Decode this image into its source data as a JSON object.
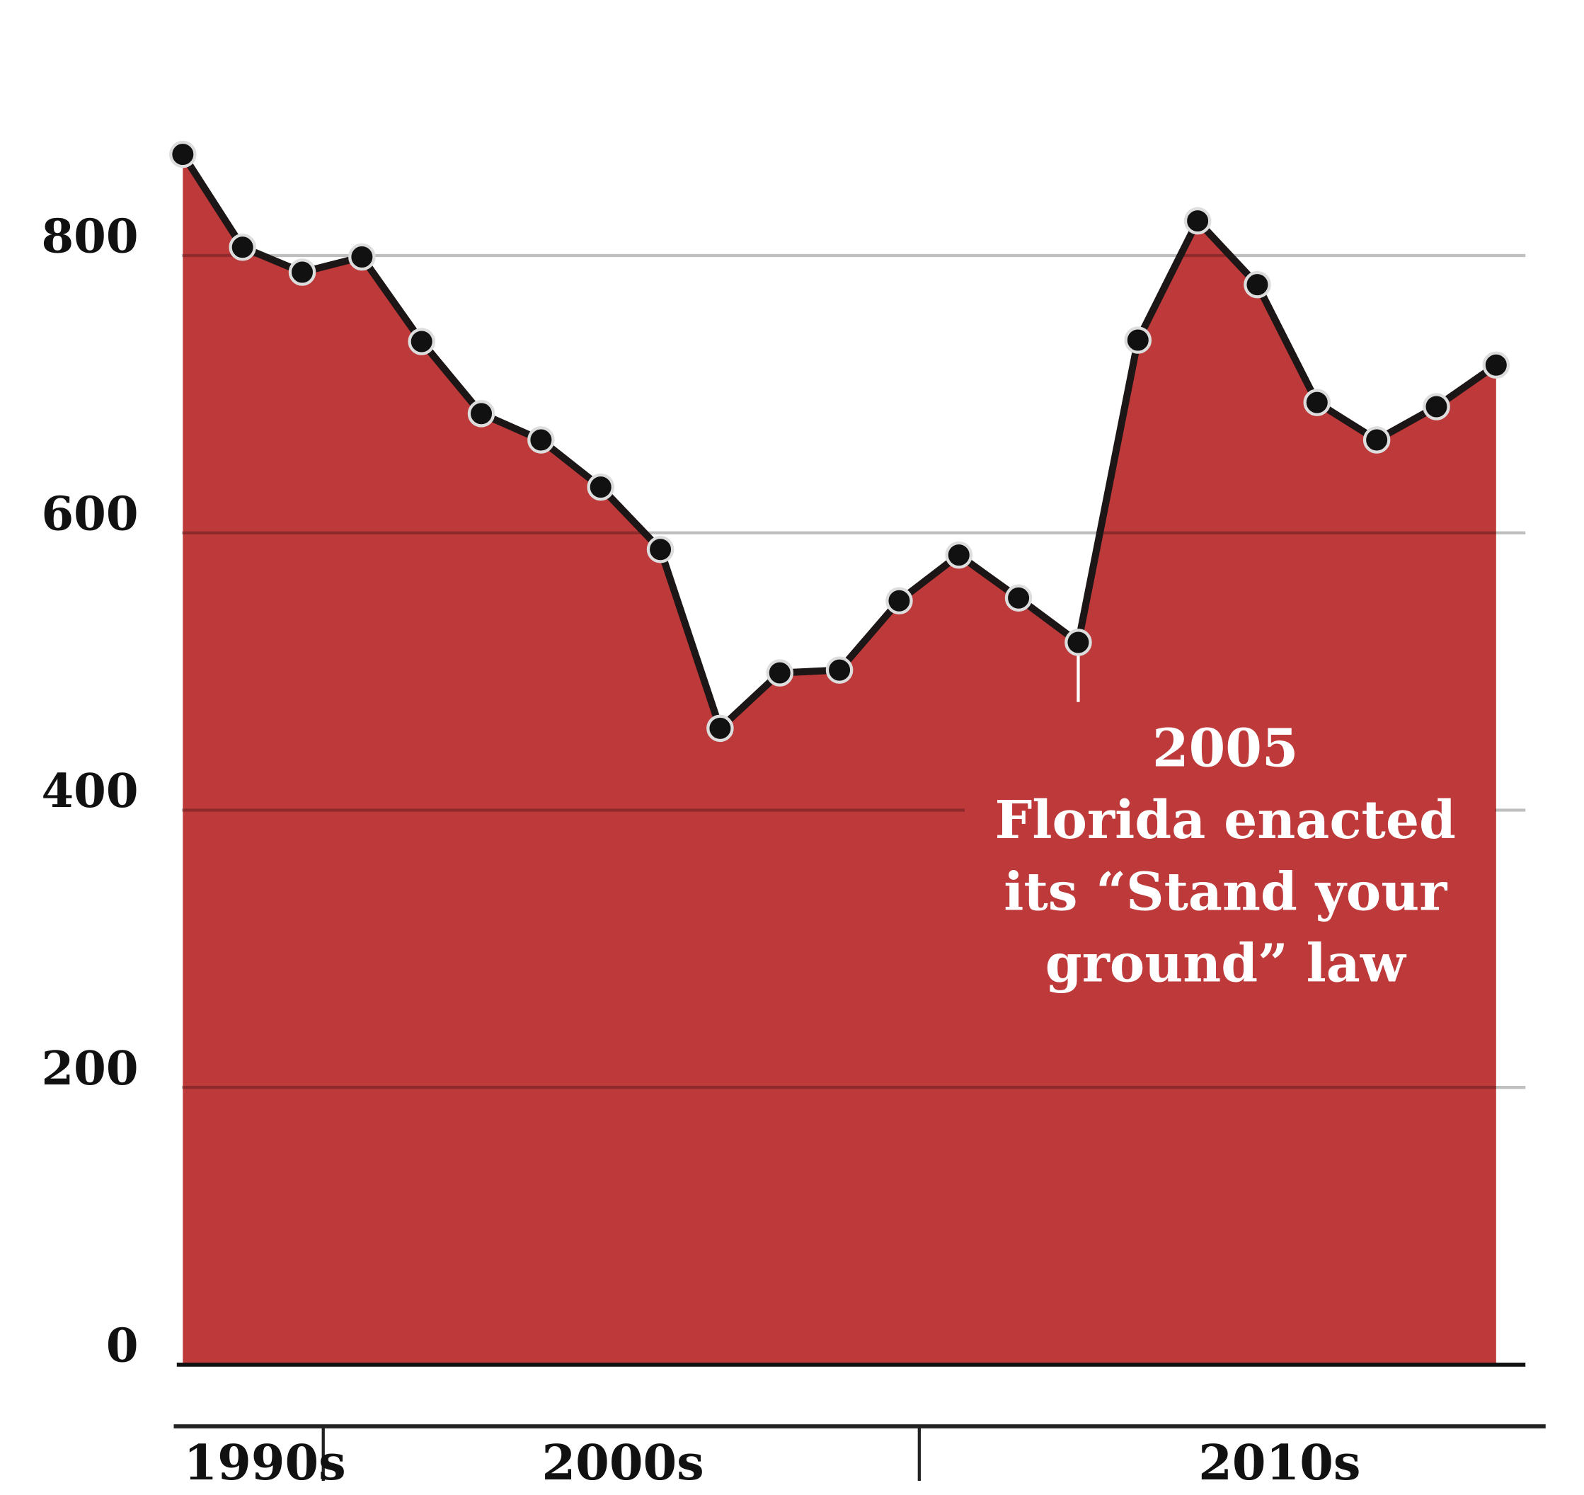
{
  "chart_data": {
    "type": "area",
    "categories": [
      null,
      "1990s",
      null,
      null,
      null,
      null,
      null,
      "2000s",
      null,
      null,
      null,
      null,
      null,
      null,
      null,
      null,
      null,
      null,
      "2010s",
      null,
      null,
      null,
      null
    ],
    "values": [
      873,
      806,
      788,
      799,
      738,
      686,
      667,
      633,
      588,
      459,
      499,
      501,
      551,
      584,
      553,
      521,
      739,
      825,
      779,
      694,
      667,
      691,
      721
    ],
    "color": "#be393a",
    "line_color": "#1c1616",
    "ylim": [
      0,
      873
    ],
    "yticks": [
      0,
      200,
      400,
      600,
      800
    ],
    "grid": true,
    "annotation": {
      "index": 15,
      "lines": [
        "2005",
        "Florida enacted",
        "its “Stand your",
        "ground” law"
      ]
    }
  }
}
